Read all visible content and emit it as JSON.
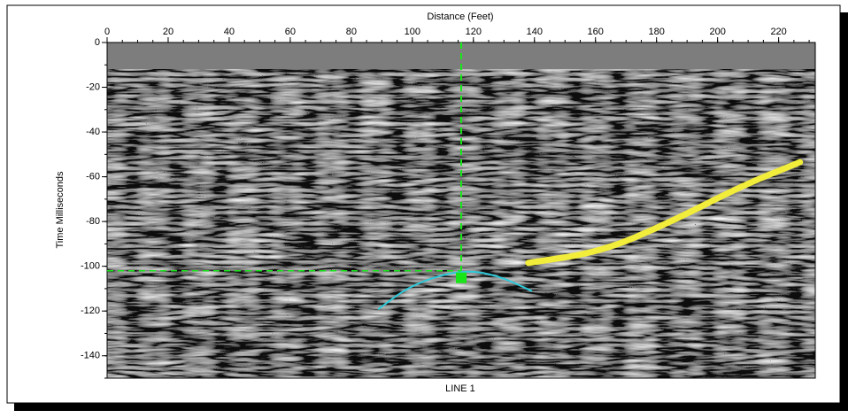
{
  "chart_data": {
    "type": "radargram",
    "title": "Distance (Feet)",
    "y_label": "Time Milliseconds",
    "footer": "LINE 1",
    "xlim": [
      0,
      232
    ],
    "ylim": [
      -150,
      0
    ],
    "xticks": [
      0,
      20,
      40,
      60,
      80,
      100,
      120,
      140,
      160,
      180,
      200,
      220
    ],
    "yticks": [
      0,
      -20,
      -40,
      -60,
      -80,
      -100,
      -120,
      -140
    ],
    "crosshair": {
      "x": 116,
      "y": -102,
      "color": "#19e619"
    },
    "curves": [
      {
        "color": "#2cc9d9",
        "x": [
          89,
          100,
          116,
          128,
          139
        ],
        "y": [
          -119,
          -108,
          -101.5,
          -104,
          -111
        ]
      },
      {
        "color": "#f2ec3a",
        "x": [
          138,
          162,
          185,
          208,
          227
        ],
        "y": [
          -98.5,
          -93.5,
          -80,
          -64,
          -53.5
        ]
      }
    ]
  }
}
